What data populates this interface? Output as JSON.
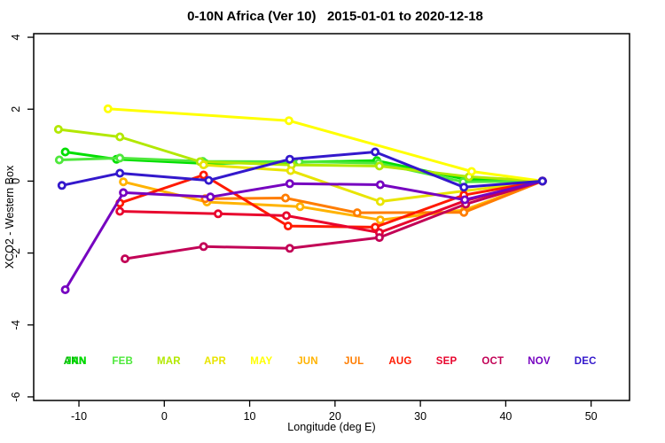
{
  "title": "0-10N Africa (Ver 10)   2015-01-01 to 2020-12-18",
  "x_axis": {
    "label": "Longitude (deg E)",
    "ticks": [
      -10,
      0,
      10,
      20,
      30,
      40,
      50
    ]
  },
  "y_axis": {
    "label": "XCO2 - Western Box",
    "ticks": [
      4,
      2,
      0,
      -2,
      -4,
      -6
    ]
  },
  "legend": {
    "annual_label": "ANN",
    "annual_color": "#00b400",
    "months": [
      {
        "label": "JAN",
        "color": "#00df00"
      },
      {
        "label": "FEB",
        "color": "#4ee83c"
      },
      {
        "label": "MAR",
        "color": "#b2e800"
      },
      {
        "label": "APR",
        "color": "#e8e400"
      },
      {
        "label": "MAY",
        "color": "#ffff00"
      },
      {
        "label": "JUN",
        "color": "#ffb300"
      },
      {
        "label": "JUL",
        "color": "#ff7d00"
      },
      {
        "label": "AUG",
        "color": "#ff1a00"
      },
      {
        "label": "SEP",
        "color": "#e8062e"
      },
      {
        "label": "OCT",
        "color": "#c20256"
      },
      {
        "label": "NOV",
        "color": "#7603c0"
      },
      {
        "label": "DEC",
        "color": "#3318cc"
      }
    ]
  },
  "chart_data": {
    "type": "line",
    "title": "0-10N Africa (Ver 10)   2015-01-01 to 2020-12-18",
    "xlabel": "Longitude (deg E)",
    "ylabel": "XCO2 - Western Box",
    "xlim": [
      -15.3,
      54.5
    ],
    "ylim": [
      -6.1,
      4.1
    ],
    "x_ticks": [
      -10,
      0,
      10,
      20,
      30,
      40,
      50
    ],
    "y_ticks": [
      4,
      2,
      0,
      -2,
      -4,
      -6
    ],
    "grid": false,
    "marker": "open-circle",
    "legend_position": "bottom-inside",
    "series": [
      {
        "name": "JAN",
        "color": "#00df00",
        "points": [
          [
            -11.6,
            0.81
          ],
          [
            -5.6,
            0.61
          ],
          [
            4.8,
            0.49
          ],
          [
            14.8,
            0.52
          ],
          [
            24.9,
            0.57
          ],
          [
            35.3,
            0.05
          ],
          [
            44.3,
            0.0
          ]
        ]
      },
      {
        "name": "FEB",
        "color": "#4ee83c",
        "points": [
          [
            -12.3,
            0.59
          ],
          [
            -5.2,
            0.64
          ],
          [
            4.5,
            0.55
          ],
          [
            15.8,
            0.54
          ],
          [
            25.1,
            0.5
          ],
          [
            35.0,
            -0.02
          ],
          [
            44.3,
            0.0
          ]
        ]
      },
      {
        "name": "MAR",
        "color": "#b2e800",
        "points": [
          [
            -12.4,
            1.44
          ],
          [
            -5.2,
            1.23
          ],
          [
            4.2,
            0.54
          ],
          [
            14.9,
            0.45
          ],
          [
            25.2,
            0.42
          ],
          [
            35.7,
            0.12
          ],
          [
            44.3,
            0.0
          ]
        ]
      },
      {
        "name": "APR",
        "color": "#e8e400",
        "points": [
          [
            4.6,
            0.45
          ],
          [
            14.8,
            0.29
          ],
          [
            25.3,
            -0.57
          ],
          [
            44.3,
            0.0
          ]
        ]
      },
      {
        "name": "MAY",
        "color": "#ffff00",
        "points": [
          [
            -6.6,
            2.01
          ],
          [
            14.6,
            1.68
          ],
          [
            36.0,
            0.27
          ],
          [
            44.3,
            0.0
          ]
        ]
      },
      {
        "name": "JUN",
        "color": "#ffb300",
        "points": [
          [
            -4.8,
            -0.02
          ],
          [
            5.0,
            -0.58
          ],
          [
            15.9,
            -0.71
          ],
          [
            25.3,
            -1.08
          ],
          [
            35.2,
            -0.8
          ],
          [
            44.3,
            0.0
          ]
        ]
      },
      {
        "name": "JUL",
        "color": "#ff7d00",
        "points": [
          [
            4.8,
            -0.49
          ],
          [
            14.2,
            -0.47
          ],
          [
            22.6,
            -0.88
          ],
          [
            35.1,
            -0.87
          ],
          [
            44.3,
            0.0
          ]
        ]
      },
      {
        "name": "AUG",
        "color": "#ff1a00",
        "points": [
          [
            -5.2,
            -0.61
          ],
          [
            4.6,
            0.17
          ],
          [
            14.5,
            -1.25
          ],
          [
            24.7,
            -1.28
          ],
          [
            35.1,
            -0.39
          ],
          [
            44.3,
            0.0
          ]
        ]
      },
      {
        "name": "SEP",
        "color": "#e8062e",
        "points": [
          [
            -5.2,
            -0.84
          ],
          [
            6.3,
            -0.91
          ],
          [
            14.3,
            -0.96
          ],
          [
            25.2,
            -1.43
          ],
          [
            35.2,
            -0.55
          ],
          [
            44.3,
            0.0
          ]
        ]
      },
      {
        "name": "OCT",
        "color": "#c20256",
        "points": [
          [
            -4.6,
            -2.16
          ],
          [
            4.6,
            -1.82
          ],
          [
            14.7,
            -1.87
          ],
          [
            25.2,
            -1.57
          ],
          [
            35.3,
            -0.64
          ],
          [
            44.3,
            0.0
          ]
        ]
      },
      {
        "name": "NOV",
        "color": "#7603c0",
        "points": [
          [
            -11.6,
            -3.02
          ],
          [
            -4.8,
            -0.32
          ],
          [
            5.4,
            -0.44
          ],
          [
            14.7,
            -0.07
          ],
          [
            25.3,
            -0.1
          ],
          [
            35.2,
            -0.52
          ],
          [
            44.3,
            0.0
          ]
        ]
      },
      {
        "name": "DEC",
        "color": "#3318cc",
        "points": [
          [
            -12.0,
            -0.12
          ],
          [
            -5.2,
            0.22
          ],
          [
            5.2,
            0.02
          ],
          [
            14.7,
            0.61
          ],
          [
            24.7,
            0.81
          ],
          [
            35.1,
            -0.17
          ],
          [
            44.3,
            0.0
          ]
        ]
      }
    ]
  }
}
